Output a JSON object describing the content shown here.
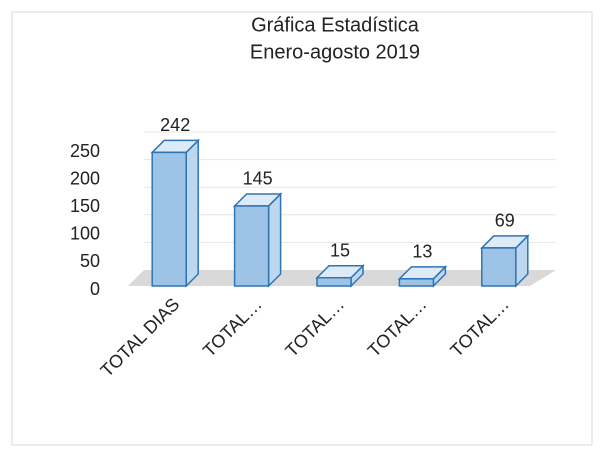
{
  "chart_data": {
    "type": "bar3d",
    "title": "Gráfica Estadística",
    "subtitle": "Enero-agosto 2019",
    "categories": [
      "TOTAL DIAS",
      "TOTAL…",
      "TOTAL…",
      "TOTAL…",
      "TOTAL…"
    ],
    "values": [
      242,
      145,
      15,
      13,
      69
    ],
    "color": "#9dc3e6",
    "ylim": [
      0,
      250
    ],
    "yticks": [
      0,
      50,
      100,
      150,
      200,
      250
    ],
    "grid": true
  }
}
